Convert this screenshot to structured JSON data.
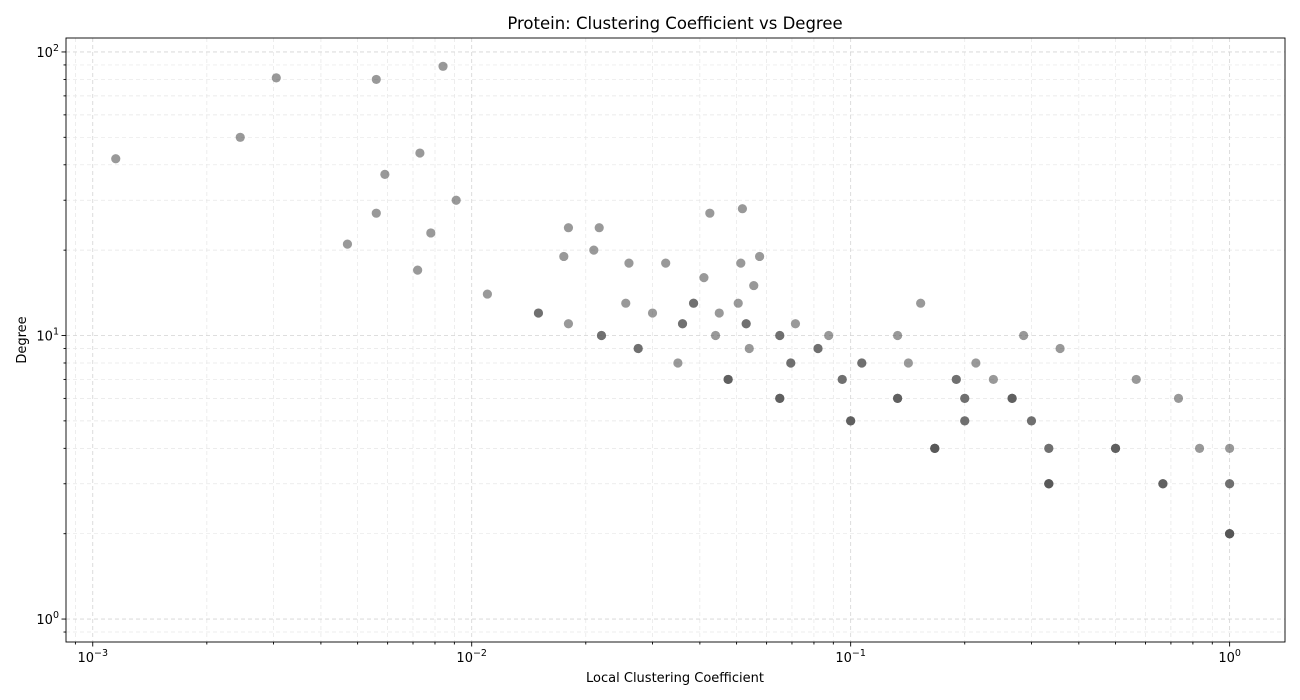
{
  "chart_data": {
    "type": "scatter",
    "title": "Protein: Clustering Coefficient vs Degree",
    "xlabel": "Local Clustering Coefficient",
    "ylabel": "Degree",
    "xscale": "log",
    "yscale": "log",
    "xlim": [
      0.00085,
      1.4
    ],
    "ylim": [
      0.83,
      112
    ],
    "xticks": [
      0.001,
      0.01,
      0.1,
      1
    ],
    "xtick_labels": [
      {
        "base": "10",
        "exp": "−3"
      },
      {
        "base": "10",
        "exp": "−2"
      },
      {
        "base": "10",
        "exp": "−1"
      },
      {
        "base": "10",
        "exp": "0"
      }
    ],
    "yticks": [
      1,
      10,
      100
    ],
    "ytick_labels": [
      {
        "base": "10",
        "exp": "0"
      },
      {
        "base": "10",
        "exp": "1"
      },
      {
        "base": "10",
        "exp": "2"
      }
    ],
    "grid": true,
    "marker_color": "#555555",
    "marker_opacity": 0.6,
    "points": [
      {
        "x": 0.00115,
        "y": 42
      },
      {
        "x": 0.00245,
        "y": 50
      },
      {
        "x": 0.00305,
        "y": 81
      },
      {
        "x": 0.0056,
        "y": 80
      },
      {
        "x": 0.0084,
        "y": 89
      },
      {
        "x": 0.0073,
        "y": 44
      },
      {
        "x": 0.0059,
        "y": 37
      },
      {
        "x": 0.0091,
        "y": 30
      },
      {
        "x": 0.0056,
        "y": 27
      },
      {
        "x": 0.0047,
        "y": 21
      },
      {
        "x": 0.0078,
        "y": 23
      },
      {
        "x": 0.0072,
        "y": 17
      },
      {
        "x": 0.011,
        "y": 14
      },
      {
        "x": 0.015,
        "y": 12
      },
      {
        "x": 0.015,
        "y": 12
      },
      {
        "x": 0.018,
        "y": 24
      },
      {
        "x": 0.0217,
        "y": 24
      },
      {
        "x": 0.0175,
        "y": 19
      },
      {
        "x": 0.021,
        "y": 20
      },
      {
        "x": 0.026,
        "y": 18
      },
      {
        "x": 0.018,
        "y": 11
      },
      {
        "x": 0.022,
        "y": 10
      },
      {
        "x": 0.022,
        "y": 10
      },
      {
        "x": 0.0255,
        "y": 13
      },
      {
        "x": 0.03,
        "y": 12
      },
      {
        "x": 0.0275,
        "y": 9
      },
      {
        "x": 0.0275,
        "y": 9
      },
      {
        "x": 0.0325,
        "y": 18
      },
      {
        "x": 0.035,
        "y": 8
      },
      {
        "x": 0.0385,
        "y": 13
      },
      {
        "x": 0.0385,
        "y": 13
      },
      {
        "x": 0.036,
        "y": 11
      },
      {
        "x": 0.036,
        "y": 11
      },
      {
        "x": 0.041,
        "y": 16
      },
      {
        "x": 0.0425,
        "y": 27
      },
      {
        "x": 0.044,
        "y": 10
      },
      {
        "x": 0.045,
        "y": 12
      },
      {
        "x": 0.0475,
        "y": 7
      },
      {
        "x": 0.0475,
        "y": 7
      },
      {
        "x": 0.0475,
        "y": 7
      },
      {
        "x": 0.0505,
        "y": 13
      },
      {
        "x": 0.0513,
        "y": 18
      },
      {
        "x": 0.0518,
        "y": 28
      },
      {
        "x": 0.053,
        "y": 11
      },
      {
        "x": 0.053,
        "y": 11
      },
      {
        "x": 0.054,
        "y": 9
      },
      {
        "x": 0.0555,
        "y": 15
      },
      {
        "x": 0.0575,
        "y": 19
      },
      {
        "x": 0.065,
        "y": 10
      },
      {
        "x": 0.065,
        "y": 10
      },
      {
        "x": 0.065,
        "y": 6
      },
      {
        "x": 0.065,
        "y": 6
      },
      {
        "x": 0.065,
        "y": 6
      },
      {
        "x": 0.0695,
        "y": 8
      },
      {
        "x": 0.0695,
        "y": 8
      },
      {
        "x": 0.0715,
        "y": 11
      },
      {
        "x": 0.082,
        "y": 9
      },
      {
        "x": 0.082,
        "y": 9
      },
      {
        "x": 0.0875,
        "y": 10
      },
      {
        "x": 0.095,
        "y": 7
      },
      {
        "x": 0.095,
        "y": 7
      },
      {
        "x": 0.1,
        "y": 5
      },
      {
        "x": 0.1,
        "y": 5
      },
      {
        "x": 0.1,
        "y": 5
      },
      {
        "x": 0.107,
        "y": 8
      },
      {
        "x": 0.107,
        "y": 8
      },
      {
        "x": 0.133,
        "y": 10
      },
      {
        "x": 0.133,
        "y": 6
      },
      {
        "x": 0.133,
        "y": 6
      },
      {
        "x": 0.133,
        "y": 6
      },
      {
        "x": 0.142,
        "y": 8
      },
      {
        "x": 0.153,
        "y": 13
      },
      {
        "x": 0.1667,
        "y": 4
      },
      {
        "x": 0.1667,
        "y": 4
      },
      {
        "x": 0.1667,
        "y": 4
      },
      {
        "x": 0.1667,
        "y": 4
      },
      {
        "x": 0.19,
        "y": 7
      },
      {
        "x": 0.19,
        "y": 7
      },
      {
        "x": 0.2,
        "y": 6
      },
      {
        "x": 0.2,
        "y": 6
      },
      {
        "x": 0.2,
        "y": 5
      },
      {
        "x": 0.2,
        "y": 5
      },
      {
        "x": 0.214,
        "y": 8
      },
      {
        "x": 0.238,
        "y": 7
      },
      {
        "x": 0.2667,
        "y": 6
      },
      {
        "x": 0.2667,
        "y": 6
      },
      {
        "x": 0.2667,
        "y": 6
      },
      {
        "x": 0.286,
        "y": 10
      },
      {
        "x": 0.3,
        "y": 5
      },
      {
        "x": 0.3,
        "y": 5
      },
      {
        "x": 0.3333,
        "y": 4
      },
      {
        "x": 0.3333,
        "y": 4
      },
      {
        "x": 0.3333,
        "y": 3
      },
      {
        "x": 0.3333,
        "y": 3
      },
      {
        "x": 0.3333,
        "y": 3
      },
      {
        "x": 0.3333,
        "y": 3
      },
      {
        "x": 0.357,
        "y": 9
      },
      {
        "x": 0.5,
        "y": 4
      },
      {
        "x": 0.5,
        "y": 4
      },
      {
        "x": 0.5,
        "y": 4
      },
      {
        "x": 0.567,
        "y": 7
      },
      {
        "x": 0.6667,
        "y": 3
      },
      {
        "x": 0.6667,
        "y": 3
      },
      {
        "x": 0.6667,
        "y": 3
      },
      {
        "x": 0.733,
        "y": 6
      },
      {
        "x": 0.833,
        "y": 4
      },
      {
        "x": 1.0,
        "y": 4
      },
      {
        "x": 1.0,
        "y": 3
      },
      {
        "x": 1.0,
        "y": 3
      },
      {
        "x": 1.0,
        "y": 2
      },
      {
        "x": 1.0,
        "y": 2
      },
      {
        "x": 1.0,
        "y": 2
      },
      {
        "x": 1.0,
        "y": 2
      },
      {
        "x": 1.0,
        "y": 2
      }
    ]
  }
}
